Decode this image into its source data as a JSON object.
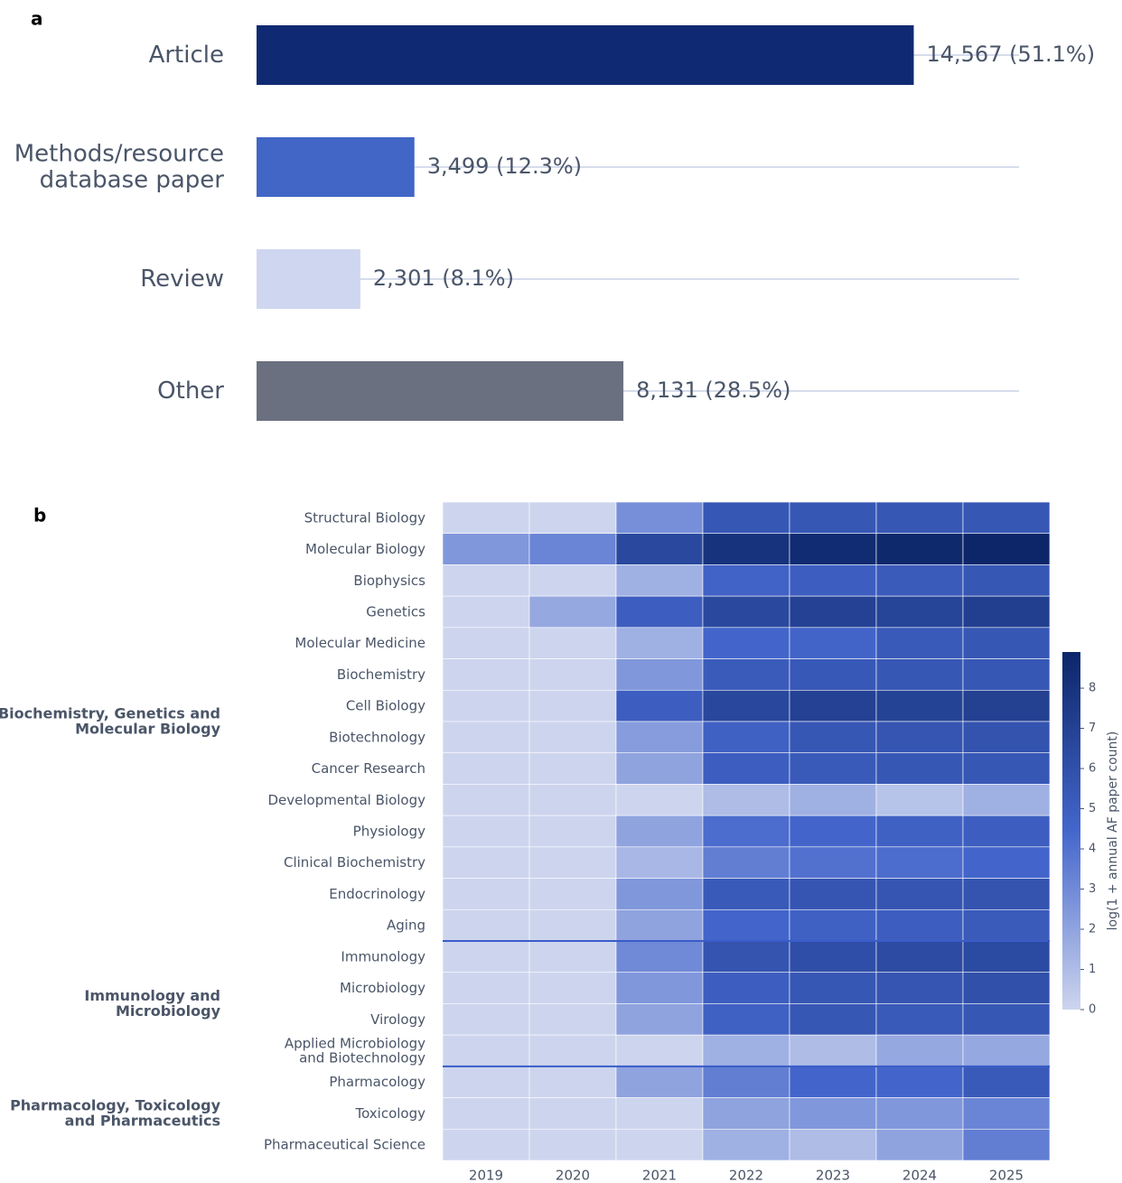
{
  "chart_data": [
    {
      "type": "barh",
      "label": "a",
      "categories": [
        [
          "Article"
        ],
        [
          "Methods/resource",
          "database paper"
        ],
        [
          "Review"
        ],
        [
          "Other"
        ]
      ],
      "values": [
        14567,
        3499,
        2301,
        8131
      ],
      "value_labels": [
        "14,567  (51.1%)",
        "3,499  (12.3%)",
        "2,301  (8.1%)",
        "8,131  (28.5%)"
      ],
      "colors": [
        "#0f2a72",
        "#4166c6",
        "#cfd6ef",
        "#6b7080"
      ],
      "xlim": [
        0,
        16900
      ]
    },
    {
      "type": "heatmap",
      "label": "b",
      "x": [
        "2019",
        "2020",
        "2021",
        "2022",
        "2023",
        "2024",
        "2025"
      ],
      "groups": [
        {
          "label": [
            "Biochemistry, Genetics and",
            "Molecular Biology"
          ],
          "rows": [
            [
              "Structural Biology"
            ],
            [
              "Molecular Biology"
            ],
            [
              "Biophysics"
            ],
            [
              "Genetics"
            ],
            [
              "Molecular Medicine"
            ],
            [
              "Biochemistry"
            ],
            [
              "Cell Biology"
            ],
            [
              "Biotechnology"
            ],
            [
              "Cancer Research"
            ],
            [
              "Developmental Biology"
            ],
            [
              "Physiology"
            ],
            [
              "Clinical Biochemistry"
            ],
            [
              "Endocrinology"
            ],
            [
              "Aging"
            ]
          ],
          "values": [
            [
              0,
              0,
              2.8,
              5.5,
              5.5,
              5.5,
              5.5
            ],
            [
              2.5,
              3.2,
              6.5,
              8.0,
              8.5,
              8.7,
              8.9
            ],
            [
              0,
              0,
              1.5,
              4.7,
              5.0,
              5.2,
              5.5
            ],
            [
              0,
              1.8,
              5.0,
              6.5,
              7.0,
              6.8,
              7.2
            ],
            [
              0,
              0,
              1.5,
              4.5,
              4.6,
              5.3,
              5.5
            ],
            [
              0,
              0,
              2.5,
              5.2,
              5.4,
              5.5,
              5.5
            ],
            [
              0,
              0,
              5.0,
              6.6,
              7.0,
              6.9,
              7.1
            ],
            [
              0,
              0,
              2.3,
              4.8,
              5.5,
              5.6,
              5.8
            ],
            [
              0,
              0,
              2.0,
              5.0,
              5.3,
              5.5,
              5.5
            ],
            [
              0,
              0,
              0,
              1.0,
              1.5,
              0.7,
              1.5
            ],
            [
              0,
              0,
              2.0,
              4.2,
              4.5,
              4.8,
              5.0
            ],
            [
              0,
              0,
              1.2,
              3.5,
              4.0,
              4.2,
              4.5
            ],
            [
              0,
              0,
              2.5,
              5.3,
              5.6,
              5.6,
              5.7
            ],
            [
              0,
              0,
              2.0,
              4.5,
              4.8,
              5.0,
              5.2
            ]
          ]
        },
        {
          "label": [
            "Immunology and",
            "Microbiology"
          ],
          "rows": [
            [
              "Immunology"
            ],
            [
              "Microbiology"
            ],
            [
              "Virology"
            ],
            [
              "Applied Microbiology",
              "and Biotechnology"
            ]
          ],
          "values": [
            [
              0,
              0,
              3.0,
              5.7,
              6.1,
              6.3,
              6.4
            ],
            [
              0,
              0,
              2.5,
              5.0,
              5.5,
              5.6,
              6.0
            ],
            [
              0,
              0,
              2.0,
              4.8,
              5.5,
              5.3,
              5.5
            ],
            [
              0,
              0,
              0,
              1.5,
              1.0,
              1.8,
              1.8
            ]
          ]
        },
        {
          "label": [
            "Pharmacology, Toxicology",
            "and Pharmaceutics"
          ],
          "rows": [
            [
              "Pharmacology"
            ],
            [
              "Toxicology"
            ],
            [
              "Pharmaceutical Science"
            ]
          ],
          "values": [
            [
              0,
              0,
              2.0,
              3.5,
              4.5,
              4.5,
              5.3
            ],
            [
              0,
              0,
              0,
              2.0,
              2.5,
              2.5,
              3.2
            ],
            [
              0,
              0,
              0,
              1.5,
              1.0,
              2.0,
              3.5
            ]
          ]
        }
      ],
      "colorscale": [
        "#cdd5ee",
        "#4466cc",
        "#0c2669"
      ],
      "zlim": [
        0,
        8.9
      ],
      "zticks": [
        0,
        1,
        2,
        3,
        4,
        5,
        6,
        7,
        8
      ],
      "colorbar_label": "log(1 + annual AF paper count)"
    }
  ]
}
